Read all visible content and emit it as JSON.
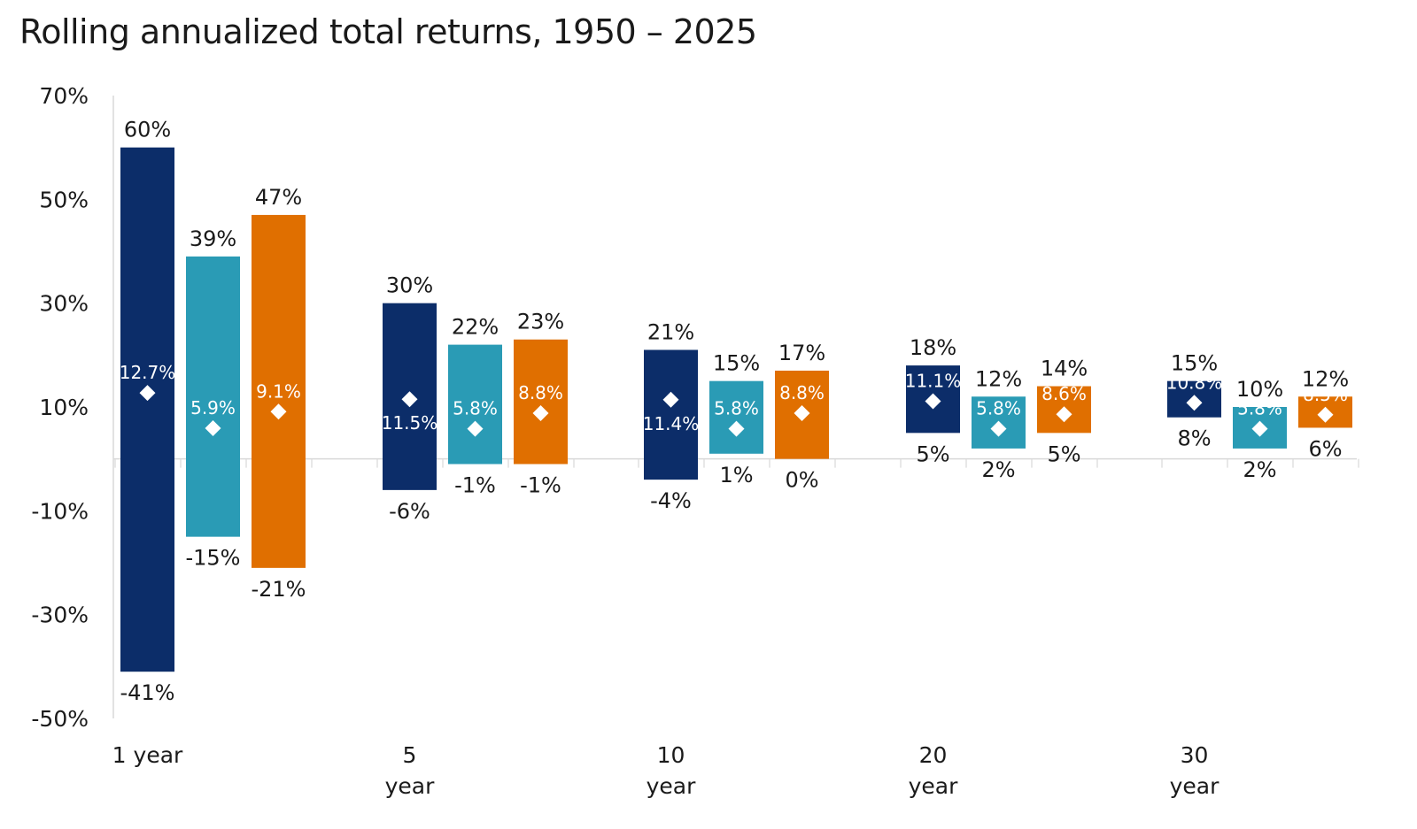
{
  "title": "Rolling annualized total returns, 1950 – 2025",
  "colors": {
    "series": [
      "#0c2d69",
      "#2a9bb5",
      "#e06f00"
    ],
    "axis": "#d9d9d9",
    "marker": "#ffffff"
  },
  "chart_data": {
    "type": "bar",
    "subtype": "floating-range",
    "ylim": [
      -50,
      70
    ],
    "yticks": [
      "70%",
      "50%",
      "30%",
      "10%",
      "-10%",
      "-30%",
      "-50%"
    ],
    "ytick_values": [
      70,
      50,
      30,
      10,
      -10,
      -30,
      -50
    ],
    "categories": [
      {
        "line1": "1 year",
        "line2": ""
      },
      {
        "line1": "5",
        "line2": "year"
      },
      {
        "line1": "10",
        "line2": "year"
      },
      {
        "line1": "20",
        "line2": "year"
      },
      {
        "line1": "30",
        "line2": "year"
      }
    ],
    "series": [
      {
        "high": [
          60,
          30,
          21,
          18,
          15
        ],
        "low": [
          -41,
          -6,
          -4,
          5,
          8
        ],
        "avg": [
          12.7,
          11.5,
          11.4,
          11.1,
          10.8
        ],
        "high_labels": [
          "60%",
          "30%",
          "21%",
          "18%",
          "15%"
        ],
        "low_labels": [
          "-41%",
          "-6%",
          "-4%",
          "5%",
          "8%"
        ],
        "avg_labels": [
          "12.7%",
          "11.5%",
          "11.4%",
          "11.1%",
          "10.8%"
        ]
      },
      {
        "high": [
          39,
          22,
          15,
          12,
          10
        ],
        "low": [
          -15,
          -1,
          1,
          2,
          2
        ],
        "avg": [
          5.9,
          5.8,
          5.8,
          5.8,
          5.8
        ],
        "high_labels": [
          "39%",
          "22%",
          "15%",
          "12%",
          "10%"
        ],
        "low_labels": [
          "-15%",
          "-1%",
          "1%",
          "2%",
          "2%"
        ],
        "avg_labels": [
          "5.9%",
          "5.8%",
          "5.8%",
          "5.8%",
          "5.8%"
        ]
      },
      {
        "high": [
          47,
          23,
          17,
          14,
          12
        ],
        "low": [
          -21,
          -1,
          0,
          5,
          6
        ],
        "avg": [
          9.1,
          8.8,
          8.8,
          8.6,
          8.5
        ],
        "high_labels": [
          "47%",
          "23%",
          "17%",
          "14%",
          "12%"
        ],
        "low_labels": [
          "-21%",
          "-1%",
          "0%",
          "5%",
          "6%"
        ],
        "avg_labels": [
          "9.1%",
          "8.8%",
          "8.8%",
          "8.6%",
          "8.5%"
        ]
      }
    ]
  }
}
